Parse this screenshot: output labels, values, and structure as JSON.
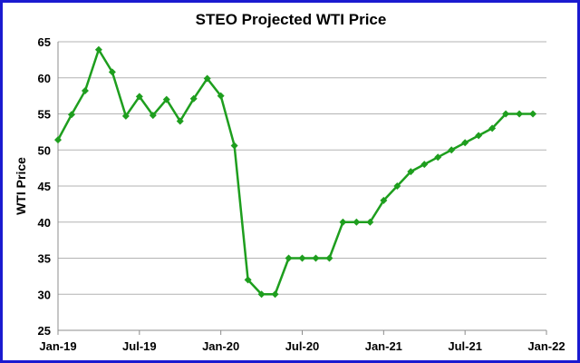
{
  "chart_data": {
    "type": "line",
    "title": "STEO Projected WTI Price",
    "xlabel": "",
    "ylabel": "WTI Price",
    "ylim": [
      25,
      65
    ],
    "yticks": [
      25,
      30,
      35,
      40,
      45,
      50,
      55,
      60,
      65
    ],
    "xlim": [
      "2019-01",
      "2022-01"
    ],
    "xticks": [
      {
        "label": "Jan-19",
        "x": "2019-01"
      },
      {
        "label": "Jul-19",
        "x": "2019-07"
      },
      {
        "label": "Jan-20",
        "x": "2020-01"
      },
      {
        "label": "Jul-20",
        "x": "2020-07"
      },
      {
        "label": "Jan-21",
        "x": "2021-01"
      },
      {
        "label": "Jul-21",
        "x": "2021-07"
      },
      {
        "label": "Jan-22",
        "x": "2022-01"
      }
    ],
    "grid": true,
    "legend": "none",
    "series_color": "#1e9e1e",
    "series": [
      {
        "x": [
          "2019-01",
          "2019-02",
          "2019-03",
          "2019-04",
          "2019-05",
          "2019-06",
          "2019-07",
          "2019-08",
          "2019-09",
          "2019-10",
          "2019-11",
          "2019-12",
          "2020-01",
          "2020-02",
          "2020-03",
          "2020-04",
          "2020-05",
          "2020-06",
          "2020-07",
          "2020-08",
          "2020-09",
          "2020-10",
          "2020-11",
          "2020-12",
          "2021-01",
          "2021-02",
          "2021-03",
          "2021-04",
          "2021-05",
          "2021-06",
          "2021-07",
          "2021-08",
          "2021-09",
          "2021-10",
          "2021-11",
          "2021-12"
        ],
        "values": [
          51.4,
          54.9,
          58.2,
          63.9,
          60.8,
          54.7,
          57.4,
          54.8,
          57.0,
          54.0,
          57.1,
          59.9,
          57.5,
          50.6,
          32.0,
          30.0,
          30.0,
          35.0,
          35.0,
          35.0,
          35.0,
          40.0,
          40.0,
          40.0,
          43.0,
          45.0,
          47.0,
          48.0,
          49.0,
          50.0,
          51.0,
          52.0,
          53.0,
          55.0,
          55.0,
          55.0
        ]
      }
    ]
  }
}
